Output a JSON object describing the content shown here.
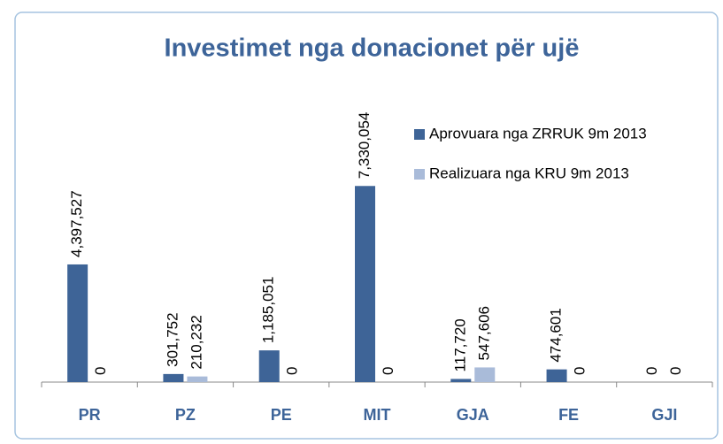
{
  "chart_data": {
    "type": "bar",
    "title": "Investimet nga donacionet për ujë",
    "categories": [
      "PR",
      "PZ",
      "PE",
      "MIT",
      "GJA",
      "FE",
      "GJI"
    ],
    "series": [
      {
        "name": "Aprovuara nga ZRRUK 9m 2013",
        "color": "#3e6497",
        "values": [
          4397527,
          301752,
          1185051,
          7330054,
          117720,
          474601,
          0
        ],
        "value_labels": [
          "4,397,527",
          "301,752",
          "1,185,051",
          "7,330,054",
          "117,720",
          "474,601",
          "0"
        ]
      },
      {
        "name": "Realizuara nga KRU 9m 2013",
        "color": "#a9bbd9",
        "values": [
          0,
          210232,
          0,
          0,
          547606,
          0,
          0
        ],
        "value_labels": [
          "0",
          "210,232",
          "0",
          "0",
          "547,606",
          "0",
          "0"
        ]
      }
    ],
    "ylim": [
      0,
      12000000
    ],
    "legend": "upper right"
  }
}
